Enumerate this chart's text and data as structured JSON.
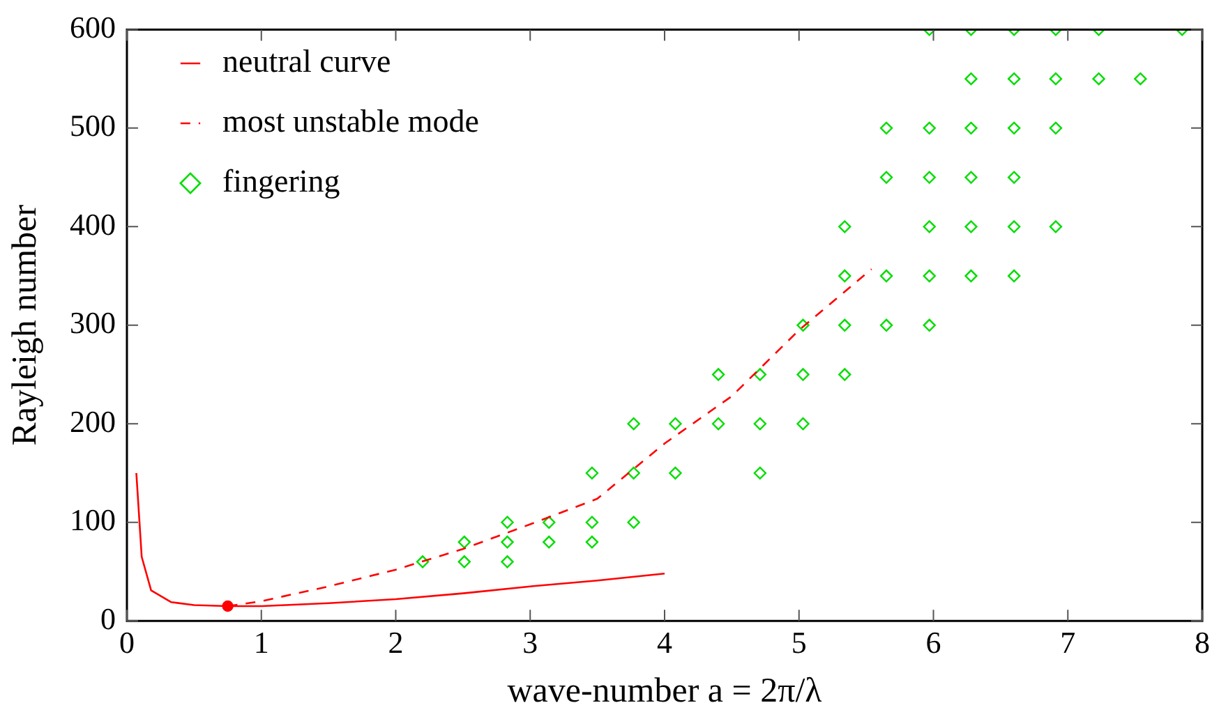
{
  "chart_data": {
    "type": "line",
    "xlabel": "wave-number a = 2π/λ",
    "ylabel": "Rayleigh number",
    "xlim": [
      0,
      8
    ],
    "xticks": [
      0,
      1,
      2,
      3,
      4,
      5,
      6,
      7,
      8
    ],
    "ylim": [
      0,
      600
    ],
    "yticks": [
      0,
      100,
      200,
      300,
      400,
      500,
      600
    ],
    "grid": false,
    "legend": "top left",
    "series": [
      {
        "name": "neutral curve",
        "color": "#ff0000",
        "line_style": "solid",
        "marker": "none",
        "x": [
          0.07,
          0.11,
          0.18,
          0.33,
          0.5,
          0.75,
          1.0,
          1.5,
          2,
          2.5,
          3,
          3.5,
          4
        ],
        "values": [
          150,
          65,
          31,
          19,
          16,
          15,
          15,
          18,
          22,
          28,
          35,
          41,
          48
        ]
      },
      {
        "name": "most unstable mode",
        "color": "#ff0000",
        "line_style": "dashed",
        "marker": "none",
        "x": [
          0.75,
          1.0,
          1.5,
          2,
          2.5,
          3,
          3.5,
          4,
          4.5,
          5,
          5.54
        ],
        "values": [
          15,
          20,
          35,
          52,
          73,
          98,
          124,
          180,
          228,
          295,
          357
        ]
      },
      {
        "name": "fingering",
        "type": "scatter",
        "color": "#00dd00",
        "marker": "diamond",
        "x": [
          2.2,
          2.51,
          2.83,
          2.51,
          2.83,
          3.14,
          3.46,
          2.83,
          3.14,
          3.46,
          3.77,
          3.46,
          3.77,
          4.08,
          4.71,
          3.77,
          4.08,
          4.4,
          4.71,
          5.03,
          4.4,
          4.71,
          5.03,
          5.34,
          5.03,
          5.34,
          5.65,
          5.97,
          5.34,
          5.65,
          5.97,
          6.28,
          6.6,
          5.34,
          5.97,
          6.28,
          6.6,
          6.91,
          5.65,
          5.97,
          6.28,
          6.6,
          5.65,
          5.97,
          6.28,
          6.6,
          6.91,
          6.28,
          6.6,
          6.91,
          7.23,
          7.54,
          5.97,
          6.28,
          6.6,
          6.91,
          7.23,
          7.85
        ],
        "values": [
          60,
          60,
          60,
          80,
          80,
          80,
          80,
          100,
          100,
          100,
          100,
          150,
          150,
          150,
          150,
          200,
          200,
          200,
          200,
          200,
          250,
          250,
          250,
          250,
          300,
          300,
          300,
          300,
          350,
          350,
          350,
          350,
          350,
          400,
          400,
          400,
          400,
          400,
          450,
          450,
          450,
          450,
          500,
          500,
          500,
          500,
          500,
          550,
          550,
          550,
          550,
          550,
          600,
          600,
          600,
          600,
          600,
          600
        ]
      },
      {
        "type": "scatter",
        "color": "#ff0000",
        "marker": "circle",
        "x": [
          0.75
        ],
        "values": [
          15
        ]
      }
    ]
  }
}
